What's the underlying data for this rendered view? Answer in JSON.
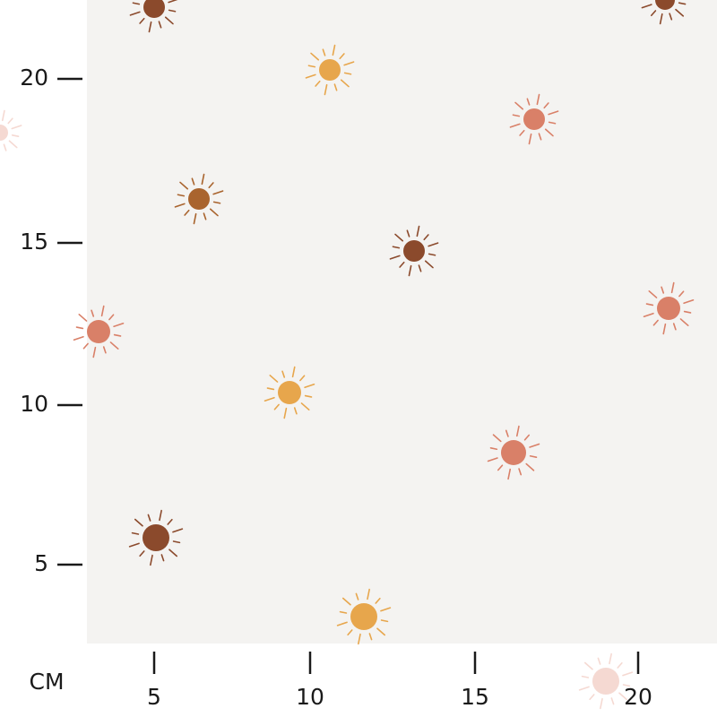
{
  "ruler": {
    "unit": "CM",
    "x_ticks": [
      "5",
      "10",
      "15",
      "20"
    ],
    "y_ticks": [
      "20",
      "15",
      "10",
      "5"
    ]
  }
}
